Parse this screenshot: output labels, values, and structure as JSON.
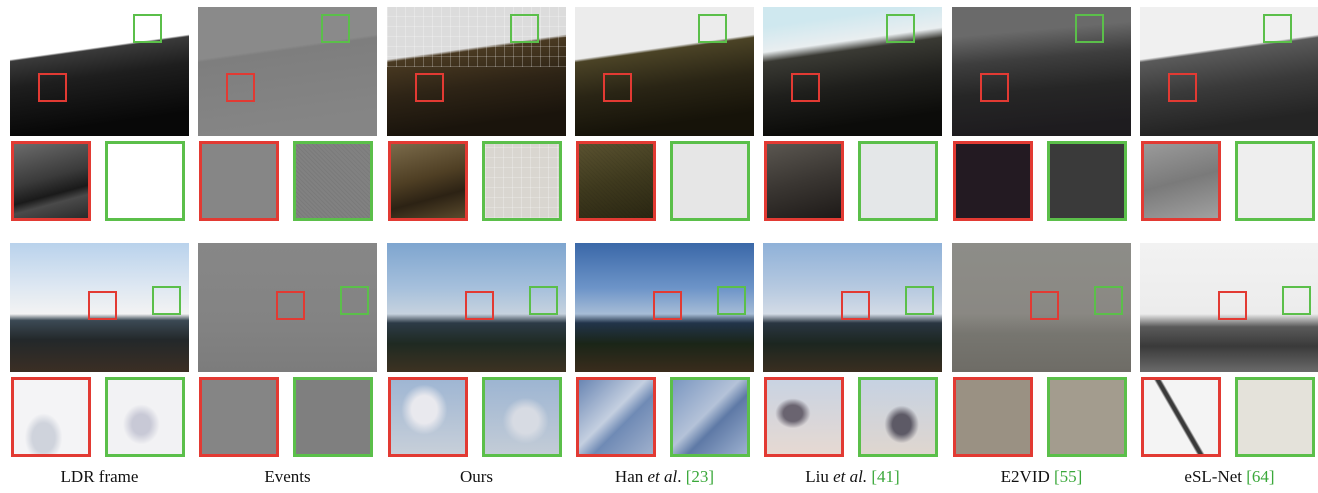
{
  "captions": [
    {
      "main": "LDR frame",
      "ref": ""
    },
    {
      "main": "Events",
      "ref": ""
    },
    {
      "main": "Ours",
      "ref": ""
    },
    {
      "pre": "Han ",
      "em": "et al",
      "post": ". ",
      "ref": "[23]"
    },
    {
      "pre": "Liu ",
      "em": "et al.",
      "post": " ",
      "ref": "[41]"
    },
    {
      "main": "E2VID ",
      "ref": "[55]"
    },
    {
      "main": "eSL-Net ",
      "ref": "[64]"
    }
  ],
  "colors": {
    "red_box": "#e23a33",
    "green_box": "#5bbf4a",
    "reference_text": "#3aa83a"
  }
}
